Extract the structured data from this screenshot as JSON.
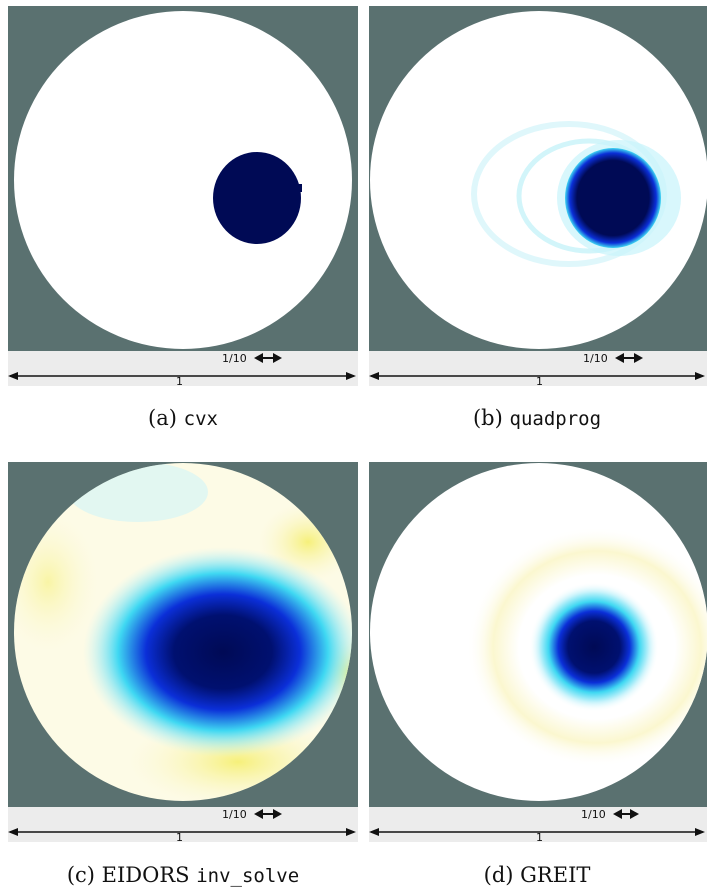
{
  "figure": {
    "panels": [
      {
        "id": "a",
        "caption_prefix": "(a)",
        "caption_code": "cvx",
        "caption_text": "",
        "scale_small": "1/10",
        "scale_large": "1"
      },
      {
        "id": "b",
        "caption_prefix": "(b)",
        "caption_code": "quadprog",
        "caption_text": "",
        "scale_small": "1/10",
        "scale_large": "1"
      },
      {
        "id": "c",
        "caption_prefix": "(c) EIDORS",
        "caption_code": "inv_solve",
        "caption_text": "",
        "scale_small": "1/10",
        "scale_large": "1"
      },
      {
        "id": "d",
        "caption_prefix": "(d)",
        "caption_code": "",
        "caption_text": "GREIT",
        "scale_small": "1/10",
        "scale_large": "1"
      }
    ],
    "colors": {
      "background_gray": "#5a7170",
      "scale_bar_bg": "#ececec",
      "dark_blue": "#000a55",
      "blue": "#0b2fd8",
      "cyan": "#3fd8f2",
      "light_cyan": "#c7f3fb",
      "yellow": "#f6f07a",
      "light_yellow": "#fbf7cf"
    }
  }
}
